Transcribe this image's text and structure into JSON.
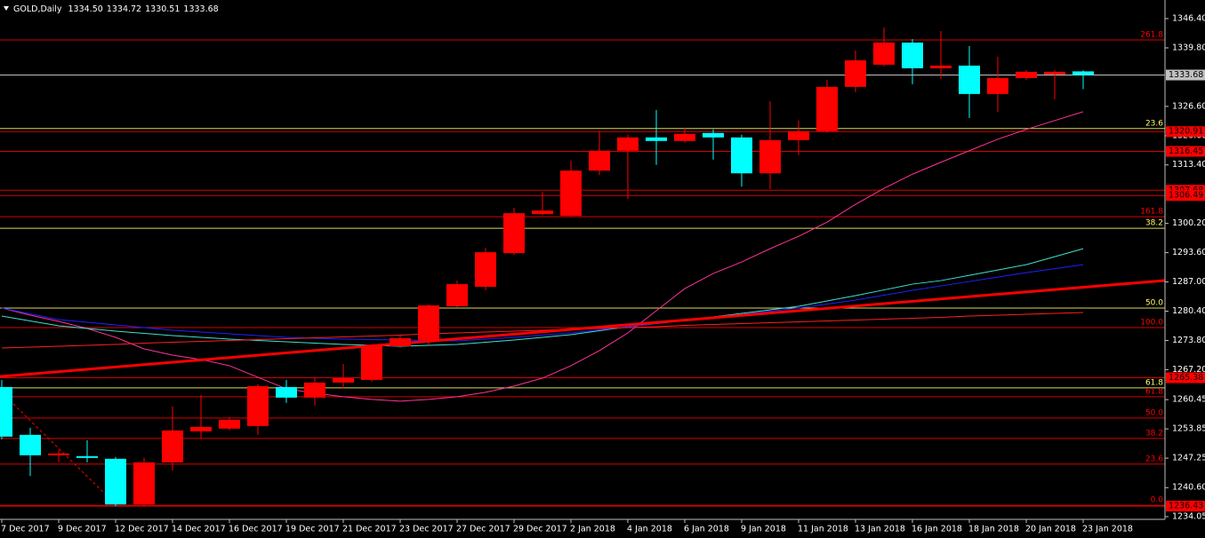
{
  "chart_data": {
    "type": "candlestick",
    "title": "GOLD,Daily",
    "ohlc_labels": [
      "1334.50",
      "1334.72",
      "1330.51",
      "1333.68"
    ],
    "categories": [
      "7 Dec 2017",
      null,
      "9 Dec 2017",
      null,
      "12 Dec 2017",
      null,
      "14 Dec 2017",
      null,
      "16 Dec 2017",
      null,
      "19 Dec 2017",
      null,
      "21 Dec 2017",
      null,
      "23 Dec 2017",
      null,
      "27 Dec 2017",
      null,
      "29 Dec 2017",
      null,
      "2 Jan 2018",
      null,
      "4 Jan 2018",
      null,
      "6 Jan 2018",
      null,
      "9 Jan 2018",
      null,
      "11 Jan 2018",
      null,
      "13 Jan 2018",
      null,
      "16 Jan 2018",
      null,
      "18 Jan 2018",
      null,
      "20 Jan 2018",
      null,
      "23 Jan 2018"
    ],
    "open": [
      1263.3,
      1252.5,
      1247.9,
      1247.7,
      1247.1,
      1236.8,
      1246.3,
      1253.3,
      1253.9,
      1254.5,
      1263.3,
      1260.9,
      1264.3,
      1264.9,
      1272.5,
      1273.9,
      1281.5,
      1285.9,
      1293.5,
      1302.3,
      1301.9,
      1312.1,
      1316.6,
      1319.6,
      1318.8,
      1320.6,
      1319.6,
      1311.5,
      1319.0,
      1321.0,
      1331.0,
      1336.0,
      1341.0,
      1335.2,
      1335.8,
      1329.4,
      1333.0,
      1333.8,
      1334.5
    ],
    "high": [
      1264.9,
      1254.1,
      1249.1,
      1251.3,
      1247.5,
      1247.3,
      1258.9,
      1261.5,
      1256.5,
      1263.9,
      1264.9,
      1265.5,
      1268.5,
      1272.9,
      1274.9,
      1281.9,
      1287.3,
      1294.7,
      1303.7,
      1307.3,
      1314.4,
      1321.0,
      1320.2,
      1325.8,
      1321.8,
      1321.4,
      1320.2,
      1327.8,
      1323.4,
      1332.6,
      1339.2,
      1344.4,
      1341.8,
      1343.6,
      1340.2,
      1337.8,
      1334.8,
      1334.8,
      1334.72
    ],
    "low": [
      1251.5,
      1243.2,
      1246.3,
      1246.3,
      1236.4,
      1236.4,
      1244.4,
      1251.7,
      1253.5,
      1252.5,
      1259.7,
      1259.1,
      1262.9,
      1264.5,
      1272.1,
      1272.9,
      1281.3,
      1285.1,
      1293.1,
      1302.1,
      1301.7,
      1311.1,
      1305.7,
      1313.4,
      1318.4,
      1314.6,
      1308.5,
      1308.0,
      1315.6,
      1320.6,
      1329.8,
      1335.6,
      1331.6,
      1332.8,
      1324.0,
      1325.4,
      1332.6,
      1328.2,
      1330.51
    ],
    "close": [
      1252.1,
      1247.9,
      1248.3,
      1247.3,
      1236.8,
      1246.3,
      1253.5,
      1254.3,
      1255.9,
      1263.5,
      1260.9,
      1264.3,
      1265.3,
      1272.5,
      1274.3,
      1281.7,
      1286.5,
      1293.7,
      1302.5,
      1303.1,
      1312.1,
      1316.6,
      1319.6,
      1318.8,
      1320.4,
      1319.6,
      1311.5,
      1319.0,
      1321.0,
      1331.0,
      1337.0,
      1341.0,
      1335.2,
      1335.8,
      1329.4,
      1333.0,
      1334.4,
      1334.4,
      1333.68
    ],
    "up_color": "#ff0000",
    "down_color": "#00ffff",
    "overlays": [
      {
        "color": "#ff3399",
        "values": [
          1281.1,
          1279.5,
          1278.1,
          1276.5,
          1274.5,
          1271.9,
          1270.5,
          1269.5,
          1268.1,
          1265.5,
          1262.9,
          1261.9,
          1261.1,
          1260.5,
          1260.1,
          1260.5,
          1261.1,
          1262.1,
          1263.5,
          1265.3,
          1268.1,
          1271.5,
          1275.5,
          1280.5,
          1285.5,
          1288.9,
          1291.5,
          1294.5,
          1297.3,
          1300.5,
          1304.5,
          1308.1,
          1311.3,
          1314.0,
          1316.6,
          1319.2,
          1321.4,
          1323.4,
          1325.4
        ]
      },
      {
        "color": "#40e0d0",
        "values": [
          1279.3,
          1278.2,
          1277.1,
          1276.5,
          1275.9,
          1275.4,
          1274.9,
          1274.5,
          1274.1,
          1273.8,
          1273.5,
          1273.2,
          1272.9,
          1272.7,
          1272.5,
          1272.7,
          1272.9,
          1273.4,
          1273.9,
          1274.5,
          1275.1,
          1276.0,
          1276.9,
          1277.6,
          1278.3,
          1279.1,
          1279.9,
          1280.7,
          1281.5,
          1282.7,
          1283.9,
          1285.2,
          1286.5,
          1287.3,
          1288.5,
          1289.7,
          1290.9,
          1292.7,
          1294.5
        ]
      },
      {
        "color": "#2020ff",
        "values": [
          1281.1,
          1279.8,
          1278.5,
          1277.9,
          1277.3,
          1276.7,
          1276.1,
          1275.7,
          1275.3,
          1274.9,
          1274.5,
          1274.3,
          1274.1,
          1274.0,
          1273.9,
          1273.8,
          1273.7,
          1274.1,
          1274.5,
          1275.0,
          1275.5,
          1276.2,
          1276.9,
          1277.6,
          1278.3,
          1279.0,
          1279.7,
          1280.4,
          1281.1,
          1282.0,
          1282.9,
          1284.0,
          1285.1,
          1286.1,
          1287.1,
          1288.1,
          1289.1,
          1290.0,
          1290.9
        ]
      },
      {
        "color": "#ff2020",
        "values": [
          1272.1,
          1272.3,
          1272.5,
          1272.7,
          1272.9,
          1273.2,
          1273.4,
          1273.6,
          1273.8,
          1274.0,
          1274.2,
          1274.4,
          1274.6,
          1274.8,
          1275.0,
          1275.3,
          1275.5,
          1275.7,
          1275.9,
          1276.1,
          1276.3,
          1276.5,
          1276.7,
          1276.9,
          1277.2,
          1277.4,
          1277.6,
          1277.8,
          1278.0,
          1278.2,
          1278.4,
          1278.6,
          1278.8,
          1279.0,
          1279.3,
          1279.5,
          1279.7,
          1279.9,
          1280.1
        ]
      }
    ],
    "trendline": {
      "color": "#ff0000",
      "x": [
        0,
        38
      ],
      "values": [
        1265.7,
        1285.8
      ]
    },
    "fib_levels": [
      {
        "value": 1341.6,
        "label": "261.8",
        "color": "#ff0000"
      },
      {
        "value": 1321.6,
        "label": "23.6",
        "color": "#ffff66"
      },
      {
        "value": 1301.7,
        "label": "161.8",
        "color": "#ff0000"
      },
      {
        "value": 1299.1,
        "label": "38.2",
        "color": "#ffff66"
      },
      {
        "value": 1281.1,
        "label": "50.0",
        "color": "#ffff66"
      },
      {
        "value": 1276.7,
        "label": "100.0",
        "color": "#ff0000"
      },
      {
        "value": 1263.1,
        "label": "61.8",
        "color": "#ffff66"
      },
      {
        "value": 1261.1,
        "label": "61.8",
        "color": "#ff0000"
      },
      {
        "value": 1256.3,
        "label": "50.0",
        "color": "#ff0000"
      },
      {
        "value": 1251.7,
        "label": "38.2",
        "color": "#ff0000"
      },
      {
        "value": 1245.9,
        "label": "23.6",
        "color": "#ff0000"
      },
      {
        "value": 1236.6,
        "label": "0.0",
        "color": "#ff0000"
      }
    ],
    "price_lines": [
      {
        "value": 1320.91,
        "color": "#ff0000"
      },
      {
        "value": 1316.45,
        "color": "#ff0000"
      },
      {
        "value": 1307.68,
        "color": "#ff0000"
      },
      {
        "value": 1306.49,
        "color": "#ff0000"
      },
      {
        "value": 1265.38,
        "color": "#ff0000"
      },
      {
        "value": 1236.43,
        "color": "#ff0000"
      }
    ],
    "bid_color": "#c0c0c0",
    "ylim": [
      1233.44,
      1350.6
    ],
    "yticks": [
      {
        "value": 1346.4,
        "label": "1346.40"
      },
      {
        "value": 1339.8,
        "label": "1339.80"
      },
      {
        "value": 1326.6,
        "label": "1326.60"
      },
      {
        "value": 1320.0,
        "label": "1320.00"
      },
      {
        "value": 1313.4,
        "label": "1313.40"
      },
      {
        "value": 1300.2,
        "label": "1300.20"
      },
      {
        "value": 1293.6,
        "label": "1293.60"
      },
      {
        "value": 1287.0,
        "label": "1287.00"
      },
      {
        "value": 1280.4,
        "label": "1280.40"
      },
      {
        "value": 1273.8,
        "label": "1273.80"
      },
      {
        "value": 1267.2,
        "label": "1267.20"
      },
      {
        "value": 1260.45,
        "label": "1260.45"
      },
      {
        "value": 1253.85,
        "label": "1253.85"
      },
      {
        "value": 1247.25,
        "label": "1247.25"
      },
      {
        "value": 1240.6,
        "label": "1240.60"
      },
      {
        "value": 1234.05,
        "label": "1234.05"
      }
    ]
  }
}
